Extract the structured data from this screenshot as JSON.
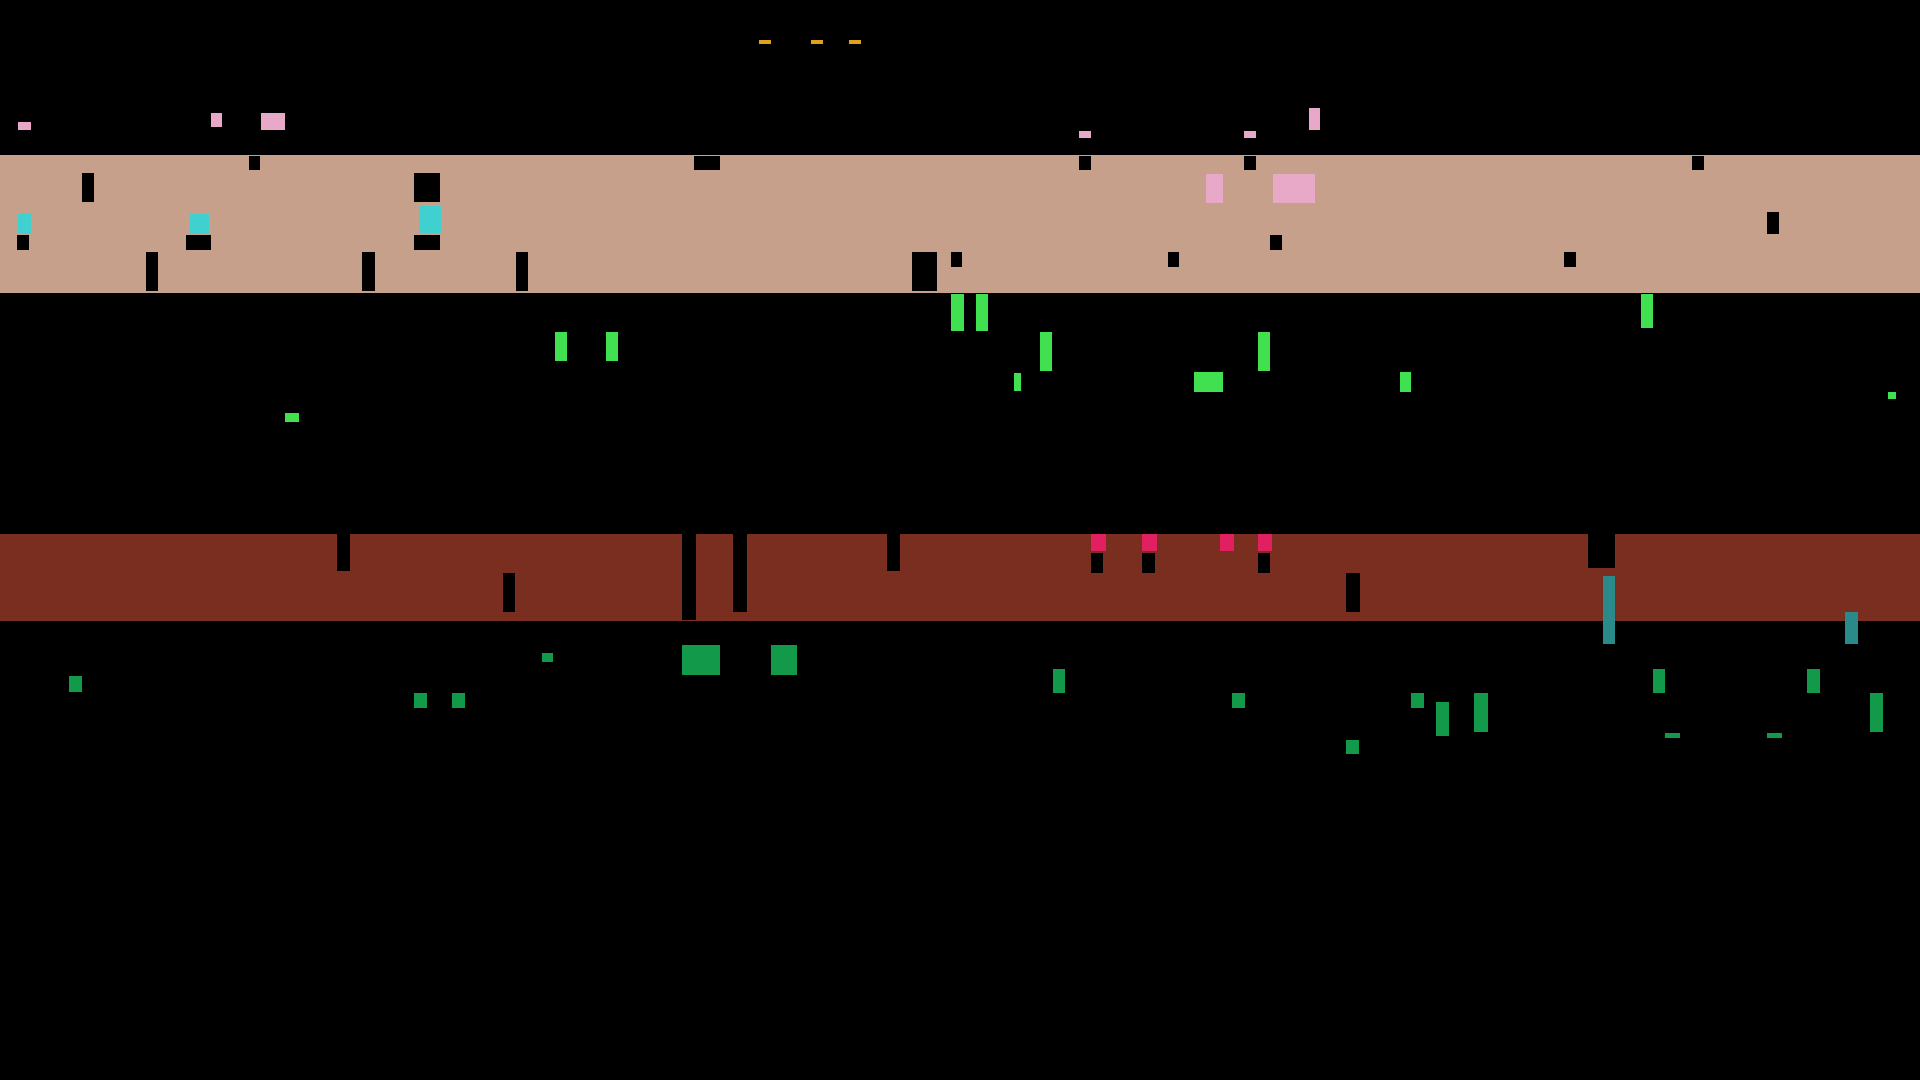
{
  "colors": {
    "background": "#000000",
    "band_top": "#c6a08a",
    "band_bottom": "#7a2e20",
    "dash": "#e0a020",
    "pink": "#e8a8c8",
    "cyan": "#40d0d0",
    "bright_green": "#40e050",
    "dark_green": "#12994a",
    "magenta": "#e02060",
    "teal": "#2a8a8a"
  }
}
